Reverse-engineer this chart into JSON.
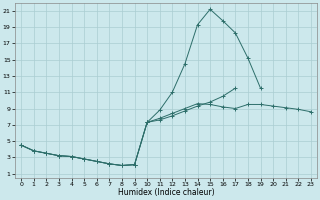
{
  "xlabel": "Humidex (Indice chaleur)",
  "xlim": [
    -0.5,
    23.5
  ],
  "ylim": [
    0.5,
    22
  ],
  "yticks": [
    1,
    3,
    5,
    7,
    9,
    11,
    13,
    15,
    17,
    19,
    21
  ],
  "xticks": [
    0,
    1,
    2,
    3,
    4,
    5,
    6,
    7,
    8,
    9,
    10,
    11,
    12,
    13,
    14,
    15,
    16,
    17,
    18,
    19,
    20,
    21,
    22,
    23
  ],
  "bg_color": "#cce8ec",
  "grid_color": "#aacdd2",
  "line_color": "#2d6e6a",
  "line1_y": [
    4.5,
    3.8,
    3.5,
    3.2,
    3.1,
    2.8,
    2.5,
    2.2,
    2.0,
    2.1,
    7.3,
    7.8,
    8.4,
    9.0,
    9.6,
    9.5,
    9.2,
    9.0,
    9.5,
    9.5,
    9.3,
    9.1,
    8.9,
    8.6
  ],
  "line2_y": [
    4.5,
    3.8,
    3.5,
    3.2,
    3.1,
    2.8,
    2.5,
    2.2,
    2.0,
    2.1,
    7.3,
    8.8,
    11.0,
    14.5,
    19.3,
    21.2,
    19.8,
    18.3,
    15.2,
    11.5,
    null,
    null,
    null,
    null
  ],
  "line3_y": [
    4.5,
    3.8,
    3.5,
    3.2,
    3.1,
    2.8,
    2.5,
    2.2,
    2.0,
    2.1,
    7.3,
    7.6,
    8.1,
    8.7,
    9.3,
    9.8,
    10.5,
    11.5,
    null,
    null,
    null,
    null,
    null,
    null
  ]
}
